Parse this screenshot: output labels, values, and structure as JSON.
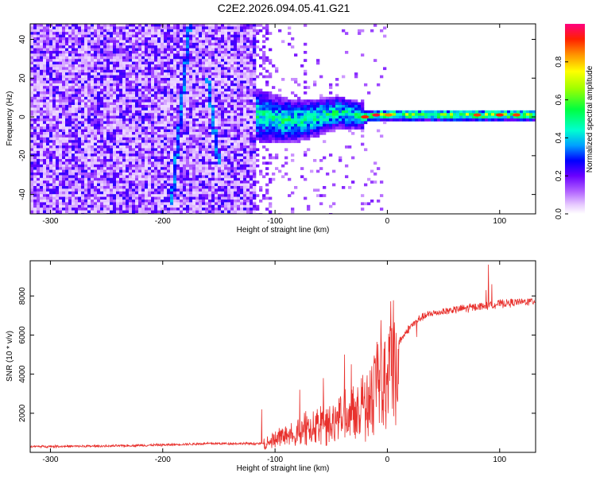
{
  "title": "C2E2.2026.094.05.41.G21",
  "chart_data": [
    {
      "type": "heatmap",
      "xlabel": "Height of straight line (km)",
      "ylabel": "Frequency (Hz)",
      "xlim": [
        -318,
        132
      ],
      "ylim": [
        -50,
        48
      ],
      "x_ticks": [
        -300,
        -200,
        -100,
        0,
        100
      ],
      "y_ticks": [
        -40,
        -20,
        0,
        20,
        40
      ],
      "grid": false,
      "colorbar": {
        "label": "Normalized spectral amplitude",
        "range": [
          0,
          1
        ],
        "ticks": [
          0.0,
          0.2,
          0.4,
          0.6,
          0.8
        ]
      },
      "features": {
        "noise_region_x": [
          -318,
          -112
        ],
        "signal_center_hz": [
          [
            -110,
            0
          ],
          [
            -95,
            -2
          ],
          [
            -80,
            -2
          ],
          [
            -60,
            0
          ],
          [
            -45,
            2
          ],
          [
            -30,
            1
          ],
          [
            -20,
            0
          ],
          [
            -10,
            1
          ],
          [
            0,
            1
          ],
          [
            40,
            1
          ],
          [
            80,
            1
          ],
          [
            132,
            1
          ]
        ],
        "oblique_tracks": [
          {
            "from": [
              -192,
              -45
            ],
            "to": [
              -176,
              48
            ]
          },
          {
            "from": [
              -160,
              20
            ],
            "to": [
              -150,
              -25
            ]
          }
        ]
      }
    },
    {
      "type": "line",
      "xlabel": "Height of straight line (km)",
      "ylabel": "SNR (10 * v/v)",
      "xlim": [
        -318,
        132
      ],
      "ylim": [
        0,
        9800
      ],
      "x_ticks": [
        -300,
        -200,
        -100,
        0,
        100
      ],
      "y_ticks": [
        2000,
        4000,
        6000,
        8000
      ],
      "grid": false,
      "color": "#e8302c",
      "envelope": [
        [
          -318,
          300
        ],
        [
          -250,
          320
        ],
        [
          -200,
          380
        ],
        [
          -160,
          450
        ],
        [
          -130,
          450
        ],
        [
          -110,
          450
        ],
        [
          -100,
          700
        ],
        [
          -90,
          1000
        ],
        [
          -70,
          1300
        ],
        [
          -50,
          1700
        ],
        [
          -35,
          2100
        ],
        [
          -20,
          2600
        ],
        [
          -10,
          3900
        ],
        [
          0,
          4800
        ],
        [
          10,
          5600
        ],
        [
          20,
          6400
        ],
        [
          30,
          6900
        ],
        [
          40,
          7100
        ],
        [
          60,
          7300
        ],
        [
          80,
          7450
        ],
        [
          100,
          7600
        ],
        [
          132,
          7750
        ]
      ],
      "spikes": [
        [
          -112,
          2200
        ],
        [
          -78,
          3200
        ],
        [
          -57,
          3800
        ],
        [
          -38,
          5000
        ],
        [
          -32,
          4500
        ],
        [
          -23,
          3800
        ],
        [
          -14,
          4000
        ],
        [
          -8,
          4600
        ],
        [
          26,
          5900
        ],
        [
          88,
          8300
        ],
        [
          90,
          9600
        ],
        [
          93,
          8600
        ]
      ]
    }
  ]
}
